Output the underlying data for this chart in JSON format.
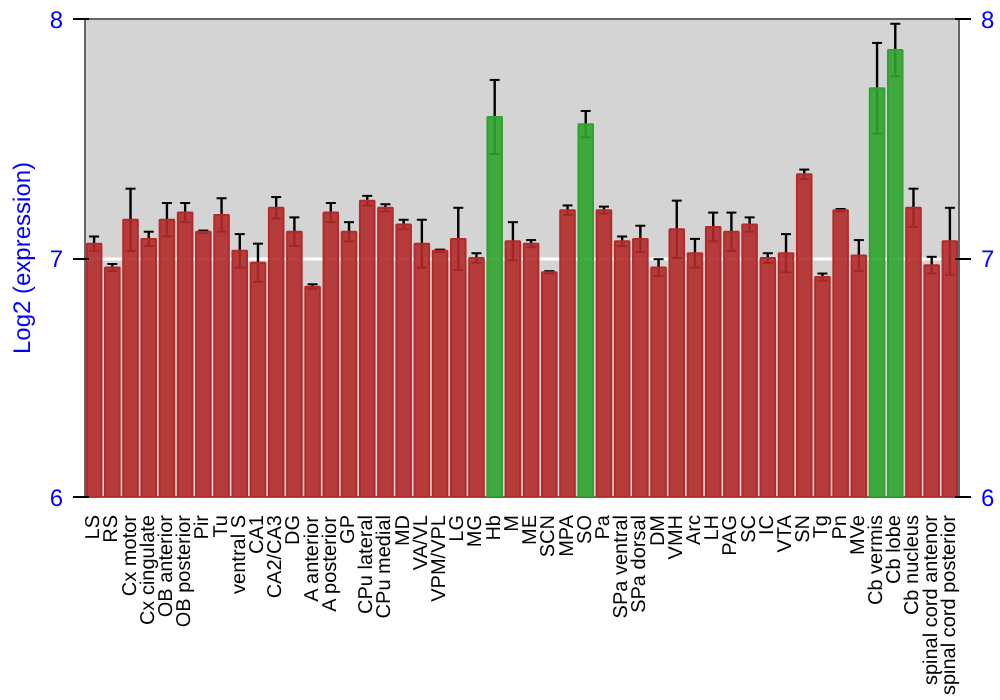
{
  "chart_data": {
    "type": "bar",
    "ylabel": "Log2 (expression)",
    "categories": [
      "LS",
      "RS",
      "Cx motor",
      "Cx cingulate",
      "OB anterior",
      "OB posterior",
      "Pir",
      "Tu",
      "ventral S",
      "CA1",
      "CA2/CA3",
      "DG",
      "A anterior",
      "A posterior",
      "GP",
      "CPu lateral",
      "CPu medial",
      "MD",
      "VA/VL",
      "VPM/VPL",
      "LG",
      "MG",
      "Hb",
      "M",
      "ME",
      "SCN",
      "MPA",
      "SO",
      "Pa",
      "SPa ventral",
      "SPa dorsal",
      "DM",
      "VMH",
      "Arc",
      "LH",
      "PAG",
      "SC",
      "IC",
      "VTA",
      "SN",
      "Tg",
      "Pn",
      "MVe",
      "Cb vermis",
      "Cb lobe",
      "Cb nucleus",
      "spinal cord antenor",
      "spinal cord posterior"
    ],
    "values": [
      7.06,
      6.96,
      7.16,
      7.08,
      7.16,
      7.19,
      7.11,
      7.18,
      7.03,
      6.98,
      7.21,
      7.11,
      6.88,
      7.19,
      7.11,
      7.24,
      7.21,
      7.14,
      7.06,
      7.03,
      7.08,
      7.0,
      7.59,
      7.07,
      7.06,
      6.94,
      7.2,
      7.56,
      7.2,
      7.07,
      7.08,
      6.96,
      7.12,
      7.02,
      7.13,
      7.11,
      7.14,
      7.0,
      7.02,
      7.35,
      6.92,
      7.2,
      7.01,
      7.71,
      7.87,
      7.21,
      6.97,
      7.07
    ],
    "errors": [
      0.03,
      0.015,
      0.13,
      0.03,
      0.07,
      0.04,
      0.005,
      0.07,
      0.07,
      0.08,
      0.045,
      0.06,
      0.01,
      0.04,
      0.04,
      0.02,
      0.015,
      0.02,
      0.1,
      0.005,
      0.13,
      0.02,
      0.155,
      0.08,
      0.015,
      0.005,
      0.02,
      0.055,
      0.015,
      0.02,
      0.055,
      0.035,
      0.12,
      0.06,
      0.06,
      0.08,
      0.03,
      0.02,
      0.08,
      0.02,
      0.015,
      0.005,
      0.065,
      0.19,
      0.11,
      0.08,
      0.035,
      0.14
    ],
    "colors": [
      "#b22a2a",
      "#b22a2a",
      "#b22a2a",
      "#b22a2a",
      "#b22a2a",
      "#b22a2a",
      "#b22a2a",
      "#b22a2a",
      "#b22a2a",
      "#b22a2a",
      "#b22a2a",
      "#b22a2a",
      "#b22a2a",
      "#b22a2a",
      "#b22a2a",
      "#b22a2a",
      "#b22a2a",
      "#b22a2a",
      "#b22a2a",
      "#b22a2a",
      "#b22a2a",
      "#b22a2a",
      "#2fa32f",
      "#b22a2a",
      "#b22a2a",
      "#b22a2a",
      "#b22a2a",
      "#2fa32f",
      "#b22a2a",
      "#b22a2a",
      "#b22a2a",
      "#b22a2a",
      "#b22a2a",
      "#b22a2a",
      "#b22a2a",
      "#b22a2a",
      "#b22a2a",
      "#b22a2a",
      "#b22a2a",
      "#b22a2a",
      "#b22a2a",
      "#b22a2a",
      "#b22a2a",
      "#2fa32f",
      "#2fa32f",
      "#b22a2a",
      "#b22a2a",
      "#b22a2a"
    ],
    "ylim": [
      6,
      8
    ],
    "yticks": [
      6,
      7,
      8
    ],
    "y2lim": [
      6,
      8
    ],
    "y2ticks": [
      6,
      7,
      8
    ],
    "grid": "y"
  }
}
